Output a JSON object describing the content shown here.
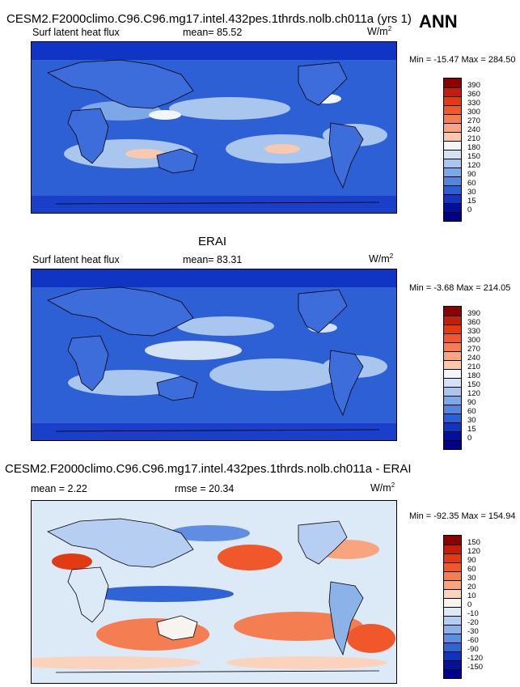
{
  "header": {
    "title": "CESM2.F2000climo.C96.C96.mg17.intel.432pes.1thrds.nolb.ch011a (yrs 1)",
    "season": "ANN"
  },
  "panel1": {
    "variable": "Surf latent heat flux",
    "mean_label": "mean=  85.52",
    "unit_base": "W/m",
    "unit_exp": "2",
    "minmax": "Min = -15.47 Max = 284.50",
    "colorbar": [
      "390",
      "360",
      "330",
      "300",
      "270",
      "240",
      "210",
      "180",
      "150",
      "120",
      "90",
      "60",
      "30",
      "15",
      "0"
    ]
  },
  "panel2": {
    "title": "ERAI",
    "variable": "Surf latent heat flux",
    "mean_label": "mean=  83.31",
    "unit_base": "W/m",
    "unit_exp": "2",
    "minmax": "Min =  -3.68 Max = 214.05",
    "colorbar": [
      "390",
      "360",
      "330",
      "300",
      "270",
      "240",
      "210",
      "180",
      "150",
      "120",
      "90",
      "60",
      "30",
      "15",
      "0"
    ]
  },
  "panel3": {
    "title": "CESM2.F2000climo.C96.C96.mg17.intel.432pes.1thrds.nolb.ch011a - ERAI",
    "mean_label": "mean =   2.22",
    "rmse_label": "rmse =  20.34",
    "unit_base": "W/m",
    "unit_exp": "2",
    "minmax": "Min = -92.35 Max = 154.94",
    "colorbar": [
      "150",
      "120",
      "90",
      "60",
      "30",
      "20",
      "10",
      "0",
      "-10",
      "-20",
      "-30",
      "-60",
      "-90",
      "-120",
      "-150"
    ]
  },
  "colors": {
    "abs_scale": [
      "#8b0000",
      "#c41d08",
      "#e23a12",
      "#f0572b",
      "#f47d52",
      "#f8a47e",
      "#fbc8a9",
      "#f2f5f9",
      "#d3e2f4",
      "#a9c7ee",
      "#7ea7e8",
      "#5485e0",
      "#2c5fd4",
      "#1034c4",
      "#040f9c",
      "#00008b"
    ],
    "diff_scale": [
      "#8b0000",
      "#c41d08",
      "#e23a12",
      "#f0572b",
      "#f47d52",
      "#f8a47e",
      "#fbd3bc",
      "#f7f3ef",
      "#dce9f7",
      "#b5cef1",
      "#8cb2ea",
      "#5f8de2",
      "#2f63d6",
      "#1032bd",
      "#04129a",
      "#00008b"
    ]
  }
}
